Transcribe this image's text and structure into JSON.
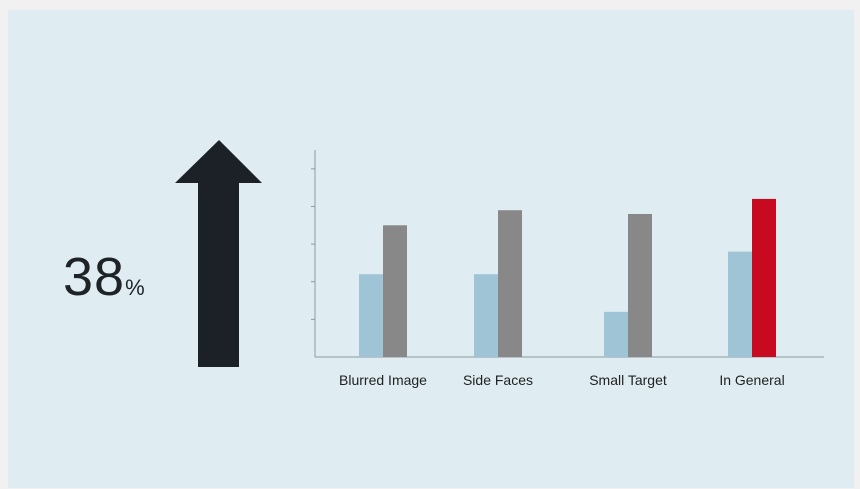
{
  "stat": {
    "value": "38",
    "unit": "%"
  },
  "chart_data": {
    "type": "bar",
    "categories": [
      "Blurred Image",
      "Side Faces",
      "Small Target",
      "In General"
    ],
    "series": [
      {
        "values": [
          2.2,
          2.2,
          1.2,
          2.8
        ]
      },
      {
        "values": [
          3.5,
          3.9,
          3.8,
          4.2
        ]
      }
    ],
    "ylim": [
      0,
      5.5
    ],
    "y_ticks": [
      1,
      2,
      3,
      4,
      5
    ],
    "grid": false,
    "colors": {
      "series_1": "#9fc4d6",
      "series_2": "#888888",
      "highlight": "#c70a1f",
      "axis": "#8c9aa2"
    },
    "highlight": {
      "series": 1,
      "category": "In General"
    }
  },
  "colors": {
    "arrow": "#1c2127",
    "stat_text": "#1f2328",
    "panel": "#dfedf2"
  }
}
